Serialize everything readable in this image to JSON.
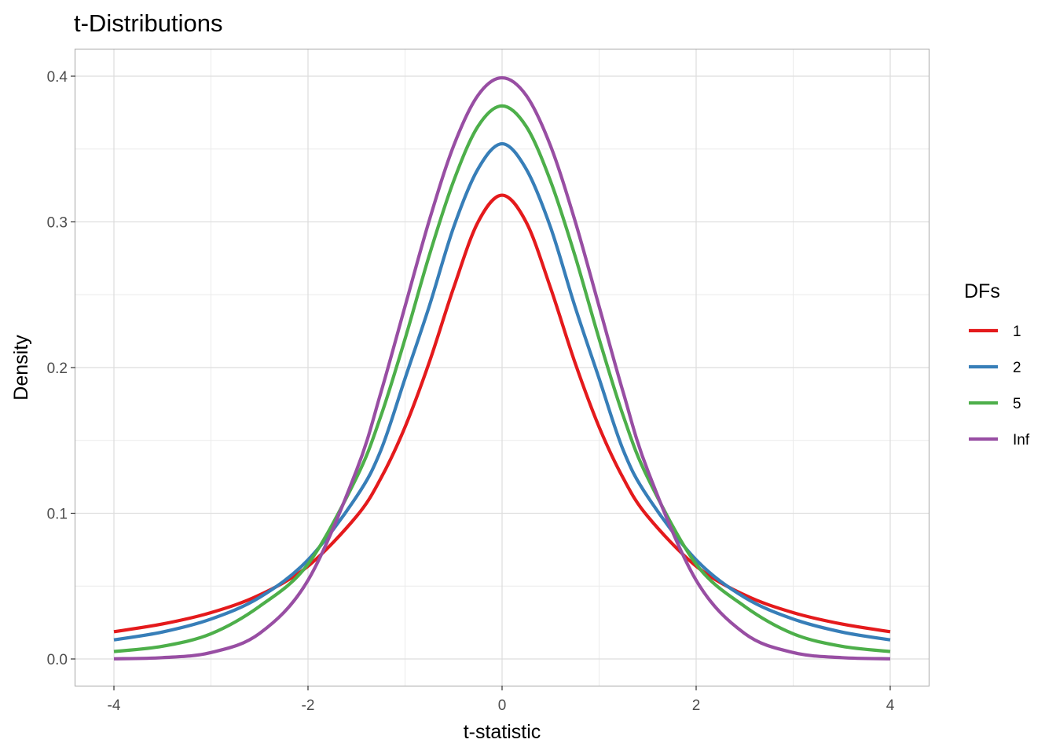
{
  "chart_data": {
    "type": "line",
    "title": "t-Distributions",
    "xlabel": "t-statistic",
    "ylabel": "Density",
    "xlim": [
      -4,
      4
    ],
    "ylim": [
      0,
      0.4
    ],
    "xticks": [
      "-4",
      "-2",
      "0",
      "2",
      "4"
    ],
    "xtick_values": [
      -4,
      -2,
      0,
      2,
      4
    ],
    "yticks": [
      "0.0",
      "0.1",
      "0.2",
      "0.3",
      "0.4"
    ],
    "ytick_values": [
      0,
      0.1,
      0.2,
      0.3,
      0.4
    ],
    "grid": true,
    "legend": {
      "title": "DFs",
      "position": "right"
    },
    "x": [
      -4,
      -3.5,
      -3,
      -2.5,
      -2,
      -1.5,
      -1.25,
      -1,
      -0.75,
      -0.5,
      -0.25,
      0,
      0.25,
      0.5,
      0.75,
      1,
      1.25,
      1.5,
      2,
      2.5,
      3,
      3.5,
      4
    ],
    "series": [
      {
        "name": "1",
        "color": "#E41A1C",
        "values": [
          0.0187,
          0.024,
          0.0318,
          0.0439,
          0.0637,
          0.0979,
          0.1239,
          0.1592,
          0.2037,
          0.2546,
          0.2996,
          0.3183,
          0.2996,
          0.2546,
          0.2037,
          0.1592,
          0.1239,
          0.0979,
          0.0637,
          0.0439,
          0.0318,
          0.024,
          0.0187
        ]
      },
      {
        "name": "2",
        "color": "#377EB8",
        "values": [
          0.0131,
          0.0185,
          0.0274,
          0.0422,
          0.068,
          0.1114,
          0.1431,
          0.1925,
          0.2422,
          0.2962,
          0.3361,
          0.3536,
          0.3361,
          0.2962,
          0.2422,
          0.1925,
          0.1431,
          0.1114,
          0.068,
          0.0422,
          0.0274,
          0.0185,
          0.0131
        ]
      },
      {
        "name": "5",
        "color": "#4DAF4A",
        "values": [
          0.0051,
          0.0087,
          0.0173,
          0.0361,
          0.0651,
          0.1245,
          0.1666,
          0.2197,
          0.2771,
          0.3279,
          0.3654,
          0.3796,
          0.3654,
          0.3279,
          0.2771,
          0.2197,
          0.1666,
          0.1245,
          0.0651,
          0.0361,
          0.0173,
          0.0087,
          0.0051
        ]
      },
      {
        "name": "Inf",
        "color": "#984EA3",
        "values": [
          0.0001,
          0.0009,
          0.0044,
          0.0175,
          0.054,
          0.1295,
          0.1826,
          0.242,
          0.3011,
          0.3521,
          0.3867,
          0.3989,
          0.3867,
          0.3521,
          0.3011,
          0.242,
          0.1826,
          0.1295,
          0.054,
          0.0175,
          0.0044,
          0.0009,
          0.0001
        ]
      }
    ]
  }
}
